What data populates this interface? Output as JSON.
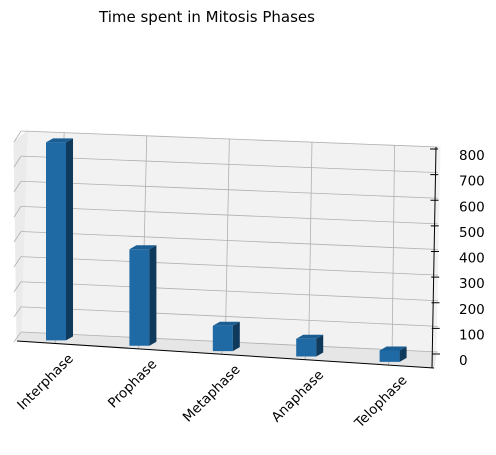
{
  "chart_data": {
    "type": "bar",
    "projection": "3d",
    "title": "Time spent in Mitosis Phases",
    "categories": [
      "Interphase",
      "Prophase",
      "Metaphase",
      "Anaphase",
      "Telophase"
    ],
    "values": [
      780,
      380,
      100,
      70,
      45
    ],
    "xlabel": "",
    "ylabel": "",
    "zlabel": "",
    "zlim": [
      0,
      800
    ],
    "zticks": [
      0,
      100,
      200,
      300,
      400,
      500,
      600,
      700,
      800
    ],
    "grid": true,
    "bar_color": "#1f6aa5"
  }
}
